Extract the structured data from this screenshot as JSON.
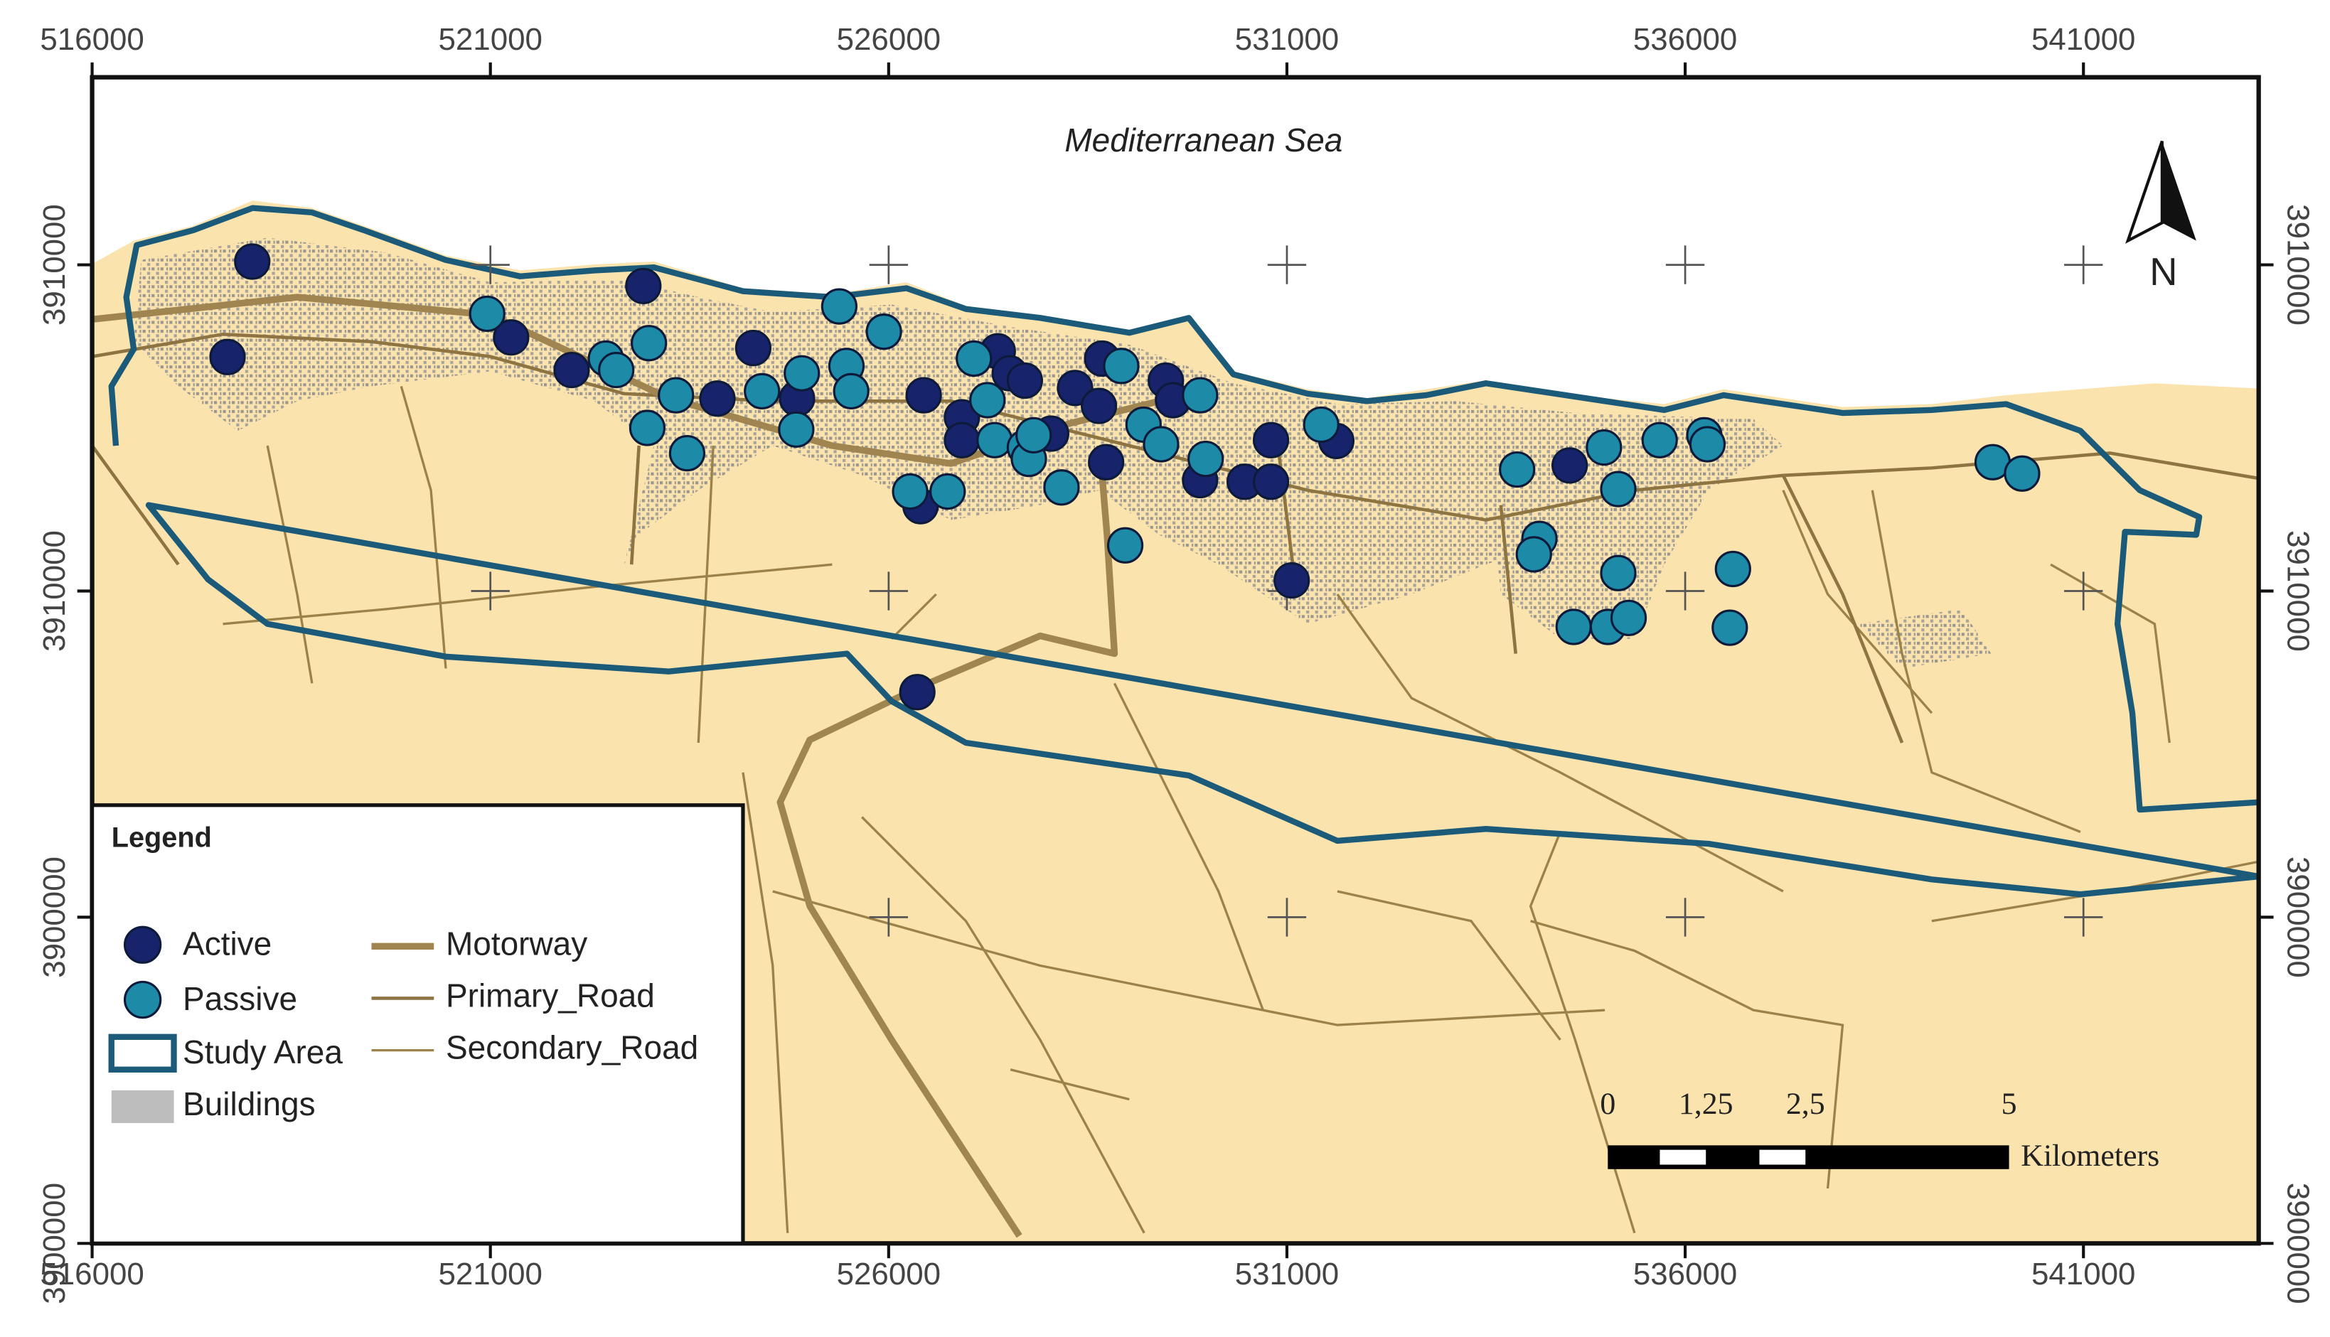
{
  "chart_data": {
    "type": "map",
    "annotation": "Mediterranean Sea",
    "north_label": "N",
    "xlim": [
      516000,
      543200
    ],
    "ylim": [
      3900000,
      3914300
    ],
    "xticks": [
      516000,
      521000,
      526000,
      531000,
      536000,
      541000
    ],
    "yticks": [
      3900000,
      {
        "value": 3904000,
        "label": "3900000"
      },
      {
        "value": 3908000,
        "label": "3910000"
      },
      {
        "value": 3912000,
        "label": "3910000"
      }
    ],
    "grid_crosses": true,
    "legend": {
      "title": "Legend",
      "layers": [
        "Study Area",
        "Buildings",
        "Motorway",
        "Primary_Road",
        "Secondary_Road"
      ]
    },
    "series": [
      {
        "name": "Active",
        "color": "#17236b",
        "x": [
          518010,
          517700,
          521260,
          522020,
          522920,
          523850,
          524300,
          524850,
          526440,
          526920,
          526920,
          527370,
          527520,
          527710,
          528040,
          528340,
          528640,
          528680,
          528730,
          529480,
          529570,
          529910,
          530470,
          530800,
          530800,
          531620,
          531060,
          534550,
          526360,
          526400
        ],
        "y": [
          3912040,
          3910870,
          3911110,
          3910710,
          3911740,
          3910360,
          3910980,
          3910360,
          3910400,
          3910130,
          3909850,
          3910940,
          3910670,
          3910580,
          3909930,
          3910490,
          3910270,
          3910850,
          3909580,
          3910580,
          3910340,
          3909360,
          3909340,
          3909340,
          3909850,
          3909840,
          3908130,
          3909540,
          3906760,
          3909040
        ]
      },
      {
        "name": "Passive",
        "color": "#1d8aa8",
        "x": [
          520960,
          522450,
          522580,
          522990,
          523330,
          522970,
          523470,
          524410,
          524840,
          524910,
          525380,
          525470,
          525530,
          525940,
          526270,
          526740,
          527070,
          527240,
          527330,
          527710,
          527760,
          528170,
          527820,
          528920,
          529200,
          529420,
          529910,
          529980,
          528970,
          531430,
          533890,
          534170,
          534100,
          534980,
          535160,
          535160,
          534600,
          535030,
          535290,
          535680,
          536240,
          536280,
          536600,
          536560,
          539860,
          540230
        ],
        "y": [
          3911400,
          3910850,
          3910710,
          3911040,
          3910400,
          3910000,
          3909690,
          3910450,
          3909980,
          3910670,
          3911490,
          3910760,
          3910450,
          3911180,
          3909220,
          3909220,
          3910850,
          3910340,
          3909850,
          3909760,
          3909620,
          3909270,
          3909910,
          3910760,
          3910040,
          3909800,
          3910400,
          3909620,
          3908560,
          3910040,
          3909490,
          3908640,
          3908450,
          3909760,
          3909250,
          3908220,
          3907560,
          3907560,
          3907670,
          3909850,
          3909910,
          3909800,
          3908270,
          3907550,
          3909580,
          3909440
        ]
      }
    ],
    "scale_bar": {
      "labels": [
        "0",
        "1,25",
        "2,5",
        "5"
      ],
      "unit": "Kilometers"
    }
  }
}
